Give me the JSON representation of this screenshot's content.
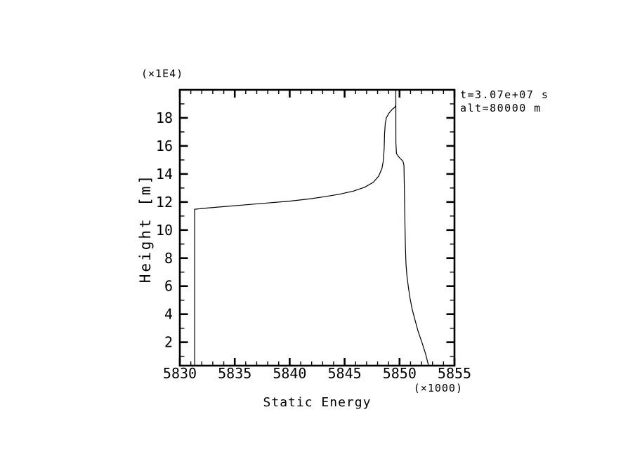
{
  "chart_data": {
    "type": "line",
    "title": "Static Energy",
    "xlabel": "Static Energy",
    "ylabel": "Height [m]",
    "x_unit_label": "(×1000)",
    "y_unit_label": "(×1E4)",
    "annotations": [
      "t=3.07e+07 s",
      "alt=80000 m"
    ],
    "xlim": [
      5830,
      5855
    ],
    "ylim": [
      0.33,
      20.0
    ],
    "x_major_ticks": [
      5830,
      5835,
      5840,
      5845,
      5850,
      5855
    ],
    "x_minor_step": 1,
    "y_major_ticks": [
      2,
      4,
      6,
      8,
      10,
      12,
      14,
      16,
      18
    ],
    "y_minor_step": 1,
    "grid": false,
    "legend": "none",
    "line_color": "#000000",
    "background": "#ffffff",
    "series": [
      {
        "name": "profile-left",
        "points": [
          [
            5831.35,
            0.33
          ],
          [
            5831.35,
            11.48
          ],
          [
            5832.5,
            11.57
          ],
          [
            5834,
            11.67
          ],
          [
            5836,
            11.8
          ],
          [
            5838,
            11.93
          ],
          [
            5840,
            12.06
          ],
          [
            5841.8,
            12.22
          ],
          [
            5843.2,
            12.38
          ],
          [
            5844.5,
            12.55
          ],
          [
            5845.8,
            12.78
          ],
          [
            5846.8,
            13.05
          ],
          [
            5847.6,
            13.4
          ],
          [
            5848.1,
            13.85
          ],
          [
            5848.4,
            14.4
          ],
          [
            5848.52,
            14.95
          ],
          [
            5848.6,
            15.8
          ],
          [
            5848.64,
            16.9
          ],
          [
            5848.7,
            17.6
          ],
          [
            5848.8,
            18.0
          ],
          [
            5849.05,
            18.35
          ],
          [
            5849.35,
            18.62
          ],
          [
            5849.6,
            18.78
          ],
          [
            5849.66,
            18.9
          ]
        ]
      },
      {
        "name": "profile-right",
        "points": [
          [
            5852.64,
            0.33
          ],
          [
            5852.38,
            1.15
          ],
          [
            5852.05,
            1.95
          ],
          [
            5851.7,
            2.75
          ],
          [
            5851.42,
            3.55
          ],
          [
            5851.15,
            4.35
          ],
          [
            5850.95,
            5.15
          ],
          [
            5850.8,
            5.95
          ],
          [
            5850.67,
            6.75
          ],
          [
            5850.59,
            7.55
          ],
          [
            5850.53,
            8.9
          ],
          [
            5850.49,
            10.4
          ],
          [
            5850.46,
            11.9
          ],
          [
            5850.43,
            13.4
          ],
          [
            5850.4,
            14.6
          ],
          [
            5850.32,
            14.9
          ],
          [
            5849.95,
            15.2
          ],
          [
            5849.72,
            15.45
          ],
          [
            5849.67,
            16.2
          ],
          [
            5849.66,
            20.0
          ]
        ]
      }
    ]
  }
}
